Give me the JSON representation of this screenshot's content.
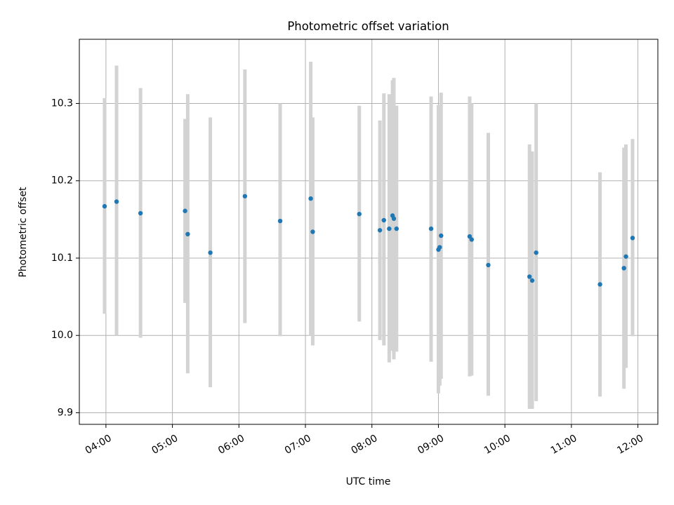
{
  "chart_data": {
    "type": "scatter",
    "title": "Photometric offset variation",
    "xlabel": "UTC time",
    "ylabel": "Photometric offset",
    "x_unit": "UTC hours",
    "xlim": [
      3.6,
      12.3
    ],
    "ylim": [
      9.885,
      10.383
    ],
    "xticks": [
      {
        "value": 4,
        "label": "04:00"
      },
      {
        "value": 5,
        "label": "05:00"
      },
      {
        "value": 6,
        "label": "06:00"
      },
      {
        "value": 7,
        "label": "07:00"
      },
      {
        "value": 8,
        "label": "08:00"
      },
      {
        "value": 9,
        "label": "09:00"
      },
      {
        "value": 10,
        "label": "10:00"
      },
      {
        "value": 11,
        "label": "11:00"
      },
      {
        "value": 12,
        "label": "12:00"
      }
    ],
    "yticks": [
      {
        "value": 9.9,
        "label": "9.9"
      },
      {
        "value": 10.0,
        "label": "10.0"
      },
      {
        "value": 10.1,
        "label": "10.1"
      },
      {
        "value": 10.2,
        "label": "10.2"
      },
      {
        "value": 10.3,
        "label": "10.3"
      }
    ],
    "grid": true,
    "marker_color": "#1f77b4",
    "errorbar_color": "#d3d3d3",
    "points": [
      {
        "x": 3.98,
        "y": 10.167,
        "ylow": 10.028,
        "yhigh": 10.307
      },
      {
        "x": 4.16,
        "y": 10.173,
        "ylow": 10.0,
        "yhigh": 10.349
      },
      {
        "x": 4.52,
        "y": 10.158,
        "ylow": 9.997,
        "yhigh": 10.32
      },
      {
        "x": 5.19,
        "y": 10.161,
        "ylow": 10.042,
        "yhigh": 10.28
      },
      {
        "x": 5.23,
        "y": 10.131,
        "ylow": 9.951,
        "yhigh": 10.312
      },
      {
        "x": 5.57,
        "y": 10.107,
        "ylow": 9.933,
        "yhigh": 10.282
      },
      {
        "x": 6.09,
        "y": 10.18,
        "ylow": 10.016,
        "yhigh": 10.344
      },
      {
        "x": 6.62,
        "y": 10.148,
        "ylow": 9.999,
        "yhigh": 10.3
      },
      {
        "x": 7.08,
        "y": 10.177,
        "ylow": 10.0,
        "yhigh": 10.354
      },
      {
        "x": 7.11,
        "y": 10.134,
        "ylow": 9.987,
        "yhigh": 10.282
      },
      {
        "x": 7.81,
        "y": 10.157,
        "ylow": 10.018,
        "yhigh": 10.297
      },
      {
        "x": 8.12,
        "y": 10.136,
        "ylow": 9.994,
        "yhigh": 10.278
      },
      {
        "x": 8.18,
        "y": 10.149,
        "ylow": 9.987,
        "yhigh": 10.313
      },
      {
        "x": 8.26,
        "y": 10.138,
        "ylow": 9.965,
        "yhigh": 10.312
      },
      {
        "x": 8.31,
        "y": 10.155,
        "ylow": 9.98,
        "yhigh": 10.33
      },
      {
        "x": 8.33,
        "y": 10.151,
        "ylow": 9.969,
        "yhigh": 10.333
      },
      {
        "x": 8.37,
        "y": 10.138,
        "ylow": 9.979,
        "yhigh": 10.297
      },
      {
        "x": 8.89,
        "y": 10.138,
        "ylow": 9.966,
        "yhigh": 10.309
      },
      {
        "x": 9.0,
        "y": 10.111,
        "ylow": 9.925,
        "yhigh": 10.298
      },
      {
        "x": 9.02,
        "y": 10.114,
        "ylow": 9.935,
        "yhigh": 10.293
      },
      {
        "x": 9.04,
        "y": 10.129,
        "ylow": 9.944,
        "yhigh": 10.314
      },
      {
        "x": 9.47,
        "y": 10.128,
        "ylow": 9.947,
        "yhigh": 10.309
      },
      {
        "x": 9.5,
        "y": 10.124,
        "ylow": 9.948,
        "yhigh": 10.3
      },
      {
        "x": 9.75,
        "y": 10.091,
        "ylow": 9.922,
        "yhigh": 10.262
      },
      {
        "x": 10.37,
        "y": 10.076,
        "ylow": 9.905,
        "yhigh": 10.247
      },
      {
        "x": 10.41,
        "y": 10.071,
        "ylow": 9.905,
        "yhigh": 10.238
      },
      {
        "x": 10.47,
        "y": 10.107,
        "ylow": 9.915,
        "yhigh": 10.3
      },
      {
        "x": 11.43,
        "y": 10.066,
        "ylow": 9.921,
        "yhigh": 10.211
      },
      {
        "x": 11.79,
        "y": 10.087,
        "ylow": 9.931,
        "yhigh": 10.243
      },
      {
        "x": 11.82,
        "y": 10.102,
        "ylow": 9.958,
        "yhigh": 10.247
      },
      {
        "x": 11.92,
        "y": 10.126,
        "ylow": 9.999,
        "yhigh": 10.254
      }
    ]
  }
}
